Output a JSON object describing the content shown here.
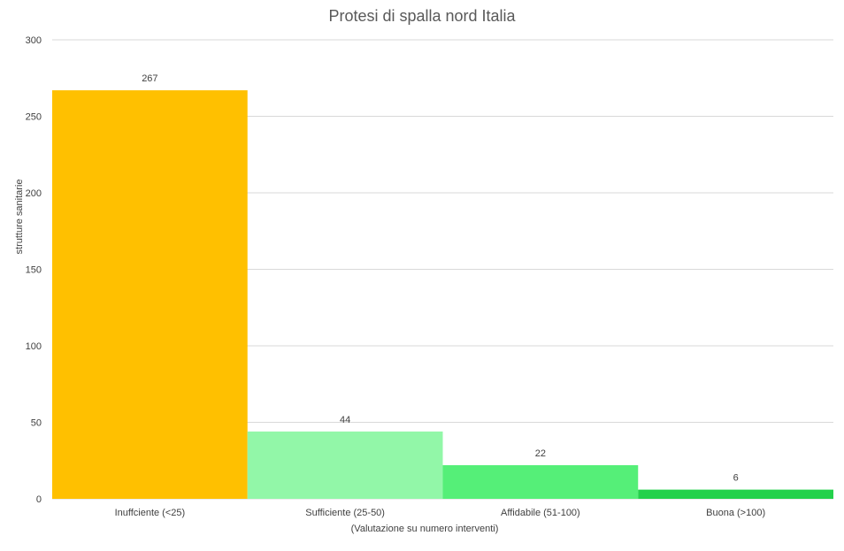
{
  "chart_data": {
    "type": "bar",
    "title": "Protesi di spalla nord Italia",
    "xlabel": "(Valutazione su numero interventi)",
    "ylabel": "strutture sanitarie",
    "categories": [
      "Inuffciente (<25)",
      "Sufficiente (25-50)",
      "Affidabile (51-100)",
      "Buona (>100)"
    ],
    "values": [
      267,
      44,
      22,
      6
    ],
    "value_labels": [
      "267",
      "44",
      "22",
      "6"
    ],
    "colors": [
      "#ffc000",
      "#92f7a8",
      "#55ef78",
      "#23d14b"
    ],
    "ylim": [
      0,
      300
    ],
    "yticks": [
      "0",
      "50",
      "100",
      "150",
      "200",
      "250",
      "300"
    ],
    "grid": true,
    "legend": "none"
  }
}
